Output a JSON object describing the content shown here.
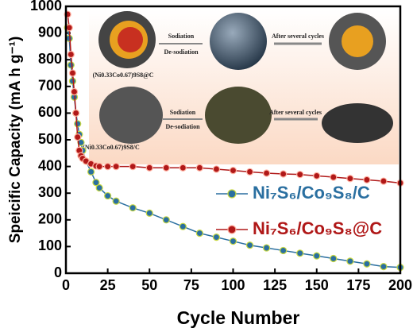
{
  "chart_data": {
    "type": "line",
    "x_label": "Cycle Number",
    "y_label": "Speicific Capacity (mA h g⁻¹)",
    "x": [
      1,
      2,
      3,
      4,
      5,
      6,
      7,
      8,
      9,
      10,
      12,
      15,
      18,
      20,
      25,
      30,
      40,
      50,
      60,
      70,
      80,
      90,
      100,
      110,
      120,
      130,
      140,
      150,
      160,
      170,
      180,
      190,
      200
    ],
    "series": [
      {
        "name": "Ni₇S₆/Co₉S₈/C",
        "color": "#2a6fa0",
        "values": [
          920,
          880,
          780,
          720,
          660,
          600,
          560,
          520,
          490,
          460,
          420,
          380,
          340,
          320,
          290,
          270,
          245,
          225,
          200,
          175,
          150,
          135,
          120,
          105,
          95,
          85,
          75,
          65,
          55,
          45,
          35,
          25,
          22
        ]
      },
      {
        "name": "Ni₇S₆/Co₉S₈@C",
        "color": "#b01818",
        "values": [
          970,
          920,
          820,
          750,
          680,
          600,
          510,
          460,
          440,
          430,
          420,
          410,
          402,
          400,
          400,
          400,
          400,
          395,
          395,
          395,
          395,
          390,
          385,
          380,
          375,
          372,
          370,
          365,
          360,
          355,
          350,
          345,
          338
        ]
      }
    ],
    "xlim": [
      0,
      200
    ],
    "xticks": [
      0,
      25,
      50,
      75,
      100,
      125,
      150,
      175,
      200
    ],
    "ylim": [
      0,
      1000
    ],
    "yticks": [
      0,
      100,
      200,
      300,
      400,
      500,
      600,
      700,
      800,
      900,
      1000
    ],
    "annotations": [
      "Sodiation",
      "De-sodiation",
      "After several cycles",
      "(Ni0.33Co0.67)9S8@C",
      "Sodiation",
      "De-sodiation",
      "After several cycles",
      "(Ni0.33Co0.67)9S8/C"
    ]
  }
}
